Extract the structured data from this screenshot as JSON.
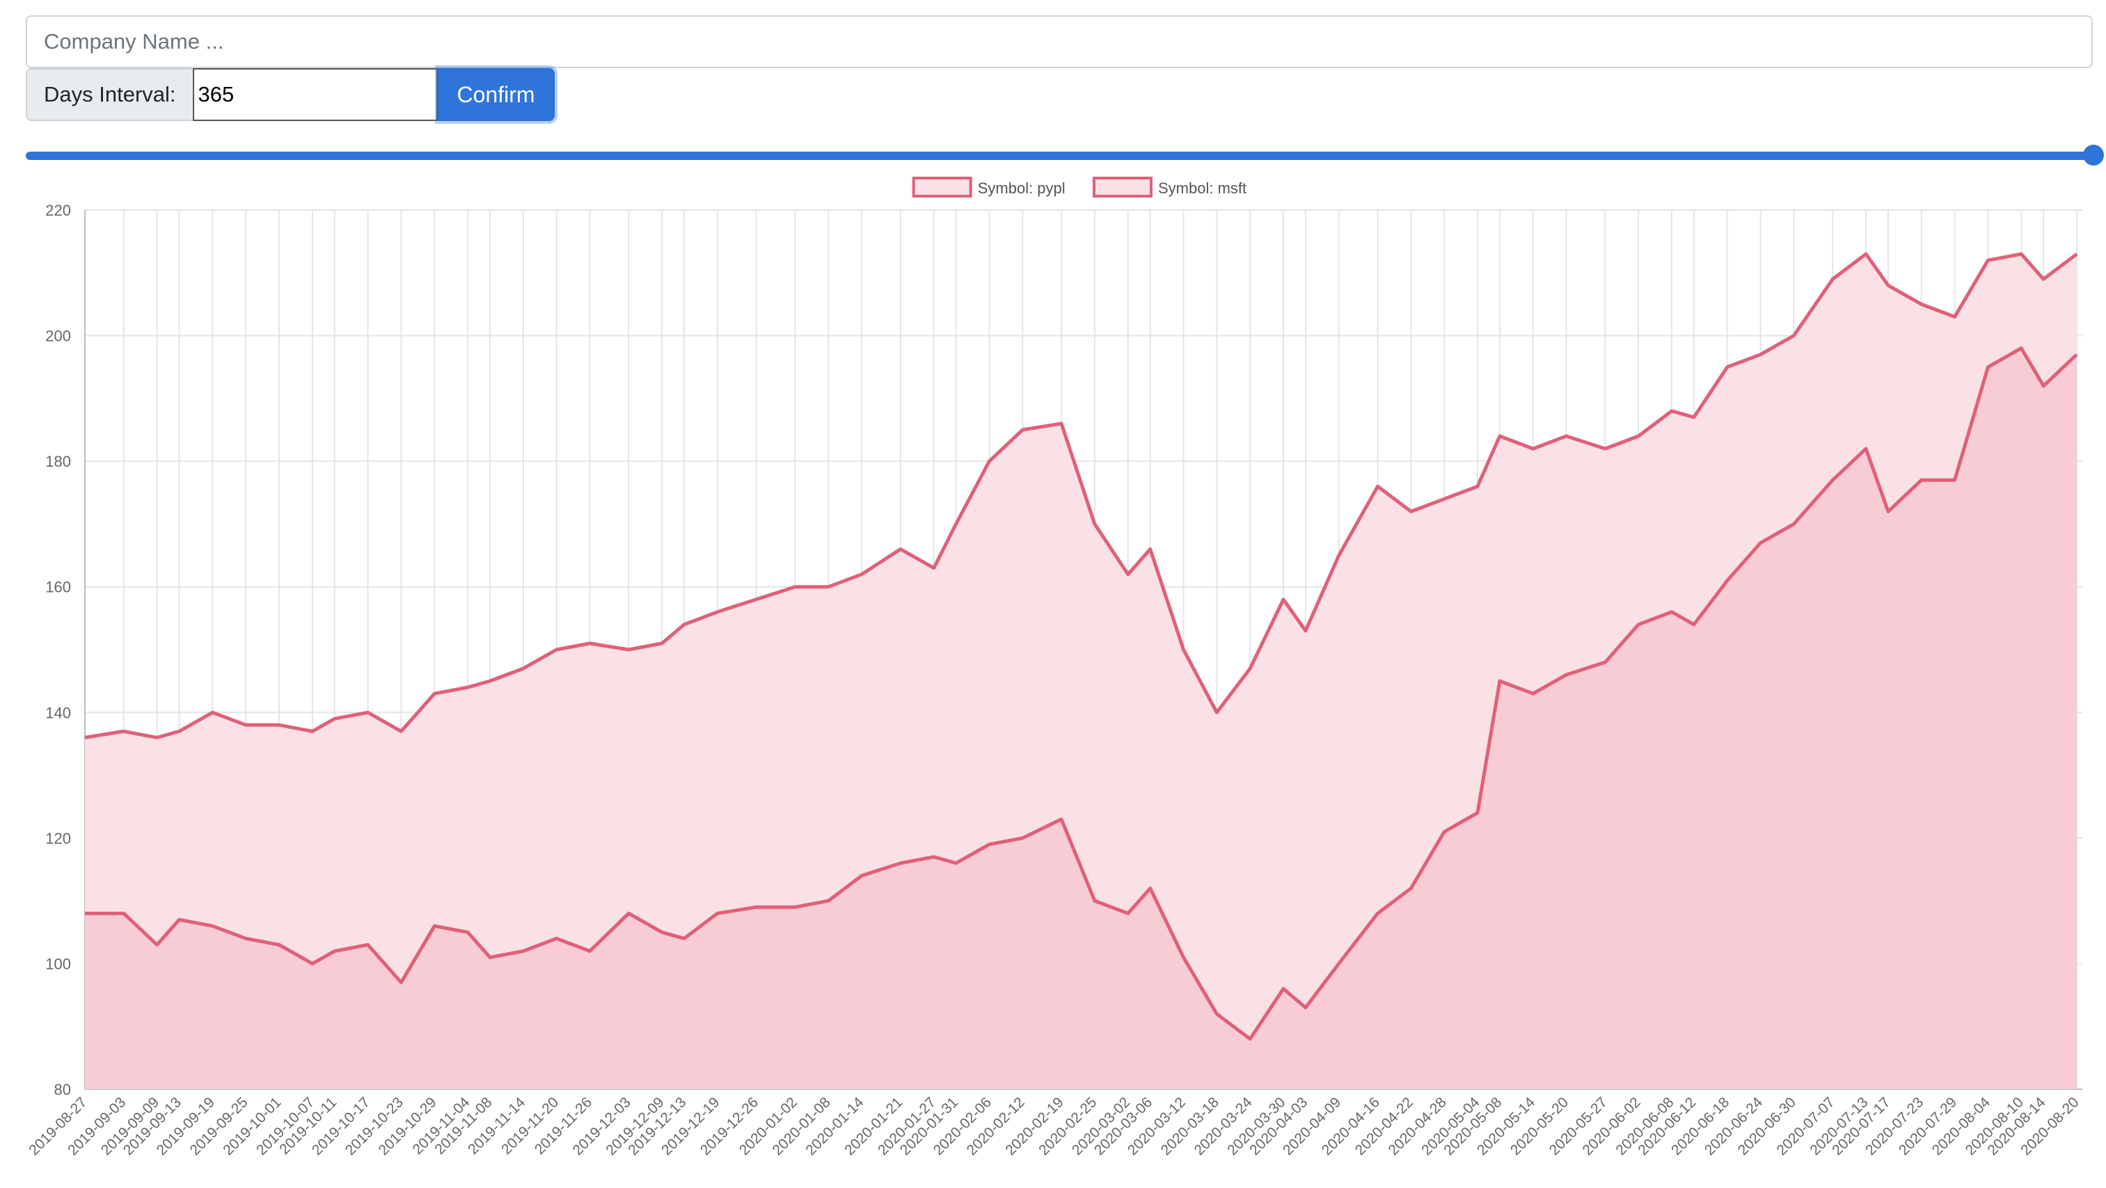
{
  "search": {
    "placeholder": "Company Name ..."
  },
  "interval": {
    "label": "Days Interval:",
    "value": "365"
  },
  "confirm_label": "Confirm",
  "slider": {
    "fraction": 1.0
  },
  "colors": {
    "accent": "#2f74d9",
    "line": "#e06079",
    "fill_back": "#f9e1e5",
    "fill_front": "#f7ccd4"
  },
  "chart_data": {
    "type": "area",
    "ylim": [
      80,
      220
    ],
    "yticks": [
      80,
      100,
      120,
      140,
      160,
      180,
      200,
      220
    ],
    "xlim": [
      "2019-08-27",
      "2020-08-21"
    ],
    "x_ticks": [
      "2019-08-27",
      "2019-09-03",
      "2019-09-09",
      "2019-09-13",
      "2019-09-19",
      "2019-09-25",
      "2019-10-01",
      "2019-10-07",
      "2019-10-11",
      "2019-10-17",
      "2019-10-23",
      "2019-10-29",
      "2019-11-04",
      "2019-11-08",
      "2019-11-14",
      "2019-11-20",
      "2019-11-26",
      "2019-12-03",
      "2019-12-09",
      "2019-12-13",
      "2019-12-19",
      "2019-12-26",
      "2020-01-02",
      "2020-01-08",
      "2020-01-14",
      "2020-01-21",
      "2020-01-27",
      "2020-01-31",
      "2020-02-06",
      "2020-02-12",
      "2020-02-19",
      "2020-02-25",
      "2020-03-02",
      "2020-03-06",
      "2020-03-12",
      "2020-03-18",
      "2020-03-24",
      "2020-03-30",
      "2020-04-03",
      "2020-04-09",
      "2020-04-16",
      "2020-04-22",
      "2020-04-28",
      "2020-05-04",
      "2020-05-08",
      "2020-05-14",
      "2020-05-20",
      "2020-05-27",
      "2020-06-02",
      "2020-06-08",
      "2020-06-12",
      "2020-06-18",
      "2020-06-24",
      "2020-06-30",
      "2020-07-07",
      "2020-07-13",
      "2020-07-17",
      "2020-07-23",
      "2020-07-29",
      "2020-08-04",
      "2020-08-10",
      "2020-08-14",
      "2020-08-20"
    ],
    "legend": "top-center",
    "grid": true,
    "series": [
      {
        "name": "Symbol: pypl",
        "points": [
          [
            "2019-08-27",
            108
          ],
          [
            "2019-09-03",
            108
          ],
          [
            "2019-09-09",
            103
          ],
          [
            "2019-09-13",
            107
          ],
          [
            "2019-09-19",
            106
          ],
          [
            "2019-09-25",
            104
          ],
          [
            "2019-10-01",
            103
          ],
          [
            "2019-10-07",
            100
          ],
          [
            "2019-10-11",
            102
          ],
          [
            "2019-10-17",
            103
          ],
          [
            "2019-10-23",
            97
          ],
          [
            "2019-10-29",
            106
          ],
          [
            "2019-11-04",
            105
          ],
          [
            "2019-11-08",
            101
          ],
          [
            "2019-11-14",
            102
          ],
          [
            "2019-11-20",
            104
          ],
          [
            "2019-11-26",
            102
          ],
          [
            "2019-12-03",
            108
          ],
          [
            "2019-12-09",
            105
          ],
          [
            "2019-12-13",
            104
          ],
          [
            "2019-12-19",
            108
          ],
          [
            "2019-12-26",
            109
          ],
          [
            "2020-01-02",
            109
          ],
          [
            "2020-01-08",
            110
          ],
          [
            "2020-01-14",
            114
          ],
          [
            "2020-01-21",
            116
          ],
          [
            "2020-01-27",
            117
          ],
          [
            "2020-01-31",
            116
          ],
          [
            "2020-02-06",
            119
          ],
          [
            "2020-02-12",
            120
          ],
          [
            "2020-02-19",
            123
          ],
          [
            "2020-02-25",
            110
          ],
          [
            "2020-03-02",
            108
          ],
          [
            "2020-03-06",
            112
          ],
          [
            "2020-03-12",
            101
          ],
          [
            "2020-03-18",
            92
          ],
          [
            "2020-03-24",
            88
          ],
          [
            "2020-03-30",
            96
          ],
          [
            "2020-04-03",
            93
          ],
          [
            "2020-04-09",
            100
          ],
          [
            "2020-04-16",
            108
          ],
          [
            "2020-04-22",
            112
          ],
          [
            "2020-04-28",
            121
          ],
          [
            "2020-05-04",
            124
          ],
          [
            "2020-05-08",
            145
          ],
          [
            "2020-05-14",
            143
          ],
          [
            "2020-05-20",
            146
          ],
          [
            "2020-05-27",
            148
          ],
          [
            "2020-06-02",
            154
          ],
          [
            "2020-06-08",
            156
          ],
          [
            "2020-06-12",
            154
          ],
          [
            "2020-06-18",
            161
          ],
          [
            "2020-06-24",
            167
          ],
          [
            "2020-06-30",
            170
          ],
          [
            "2020-07-07",
            177
          ],
          [
            "2020-07-13",
            182
          ],
          [
            "2020-07-17",
            172
          ],
          [
            "2020-07-23",
            177
          ],
          [
            "2020-07-29",
            177
          ],
          [
            "2020-08-04",
            195
          ],
          [
            "2020-08-10",
            198
          ],
          [
            "2020-08-14",
            192
          ],
          [
            "2020-08-20",
            197
          ]
        ]
      },
      {
        "name": "Symbol: msft",
        "points": [
          [
            "2019-08-27",
            136
          ],
          [
            "2019-09-03",
            137
          ],
          [
            "2019-09-09",
            136
          ],
          [
            "2019-09-13",
            137
          ],
          [
            "2019-09-19",
            140
          ],
          [
            "2019-09-25",
            138
          ],
          [
            "2019-10-01",
            138
          ],
          [
            "2019-10-07",
            137
          ],
          [
            "2019-10-11",
            139
          ],
          [
            "2019-10-17",
            140
          ],
          [
            "2019-10-23",
            137
          ],
          [
            "2019-10-29",
            143
          ],
          [
            "2019-11-04",
            144
          ],
          [
            "2019-11-08",
            145
          ],
          [
            "2019-11-14",
            147
          ],
          [
            "2019-11-20",
            150
          ],
          [
            "2019-11-26",
            151
          ],
          [
            "2019-12-03",
            150
          ],
          [
            "2019-12-09",
            151
          ],
          [
            "2019-12-13",
            154
          ],
          [
            "2019-12-19",
            156
          ],
          [
            "2019-12-26",
            158
          ],
          [
            "2020-01-02",
            160
          ],
          [
            "2020-01-08",
            160
          ],
          [
            "2020-01-14",
            162
          ],
          [
            "2020-01-21",
            166
          ],
          [
            "2020-01-27",
            163
          ],
          [
            "2020-01-31",
            170
          ],
          [
            "2020-02-06",
            180
          ],
          [
            "2020-02-12",
            185
          ],
          [
            "2020-02-19",
            186
          ],
          [
            "2020-02-25",
            170
          ],
          [
            "2020-03-02",
            162
          ],
          [
            "2020-03-06",
            166
          ],
          [
            "2020-03-12",
            150
          ],
          [
            "2020-03-18",
            140
          ],
          [
            "2020-03-24",
            147
          ],
          [
            "2020-03-30",
            158
          ],
          [
            "2020-04-03",
            153
          ],
          [
            "2020-04-09",
            165
          ],
          [
            "2020-04-16",
            176
          ],
          [
            "2020-04-22",
            172
          ],
          [
            "2020-04-28",
            174
          ],
          [
            "2020-05-04",
            176
          ],
          [
            "2020-05-08",
            184
          ],
          [
            "2020-05-14",
            182
          ],
          [
            "2020-05-20",
            184
          ],
          [
            "2020-05-27",
            182
          ],
          [
            "2020-06-02",
            184
          ],
          [
            "2020-06-08",
            188
          ],
          [
            "2020-06-12",
            187
          ],
          [
            "2020-06-18",
            195
          ],
          [
            "2020-06-24",
            197
          ],
          [
            "2020-06-30",
            200
          ],
          [
            "2020-07-07",
            209
          ],
          [
            "2020-07-13",
            213
          ],
          [
            "2020-07-17",
            208
          ],
          [
            "2020-07-23",
            205
          ],
          [
            "2020-07-29",
            203
          ],
          [
            "2020-08-04",
            212
          ],
          [
            "2020-08-10",
            213
          ],
          [
            "2020-08-14",
            209
          ],
          [
            "2020-08-20",
            213
          ]
        ]
      }
    ]
  }
}
